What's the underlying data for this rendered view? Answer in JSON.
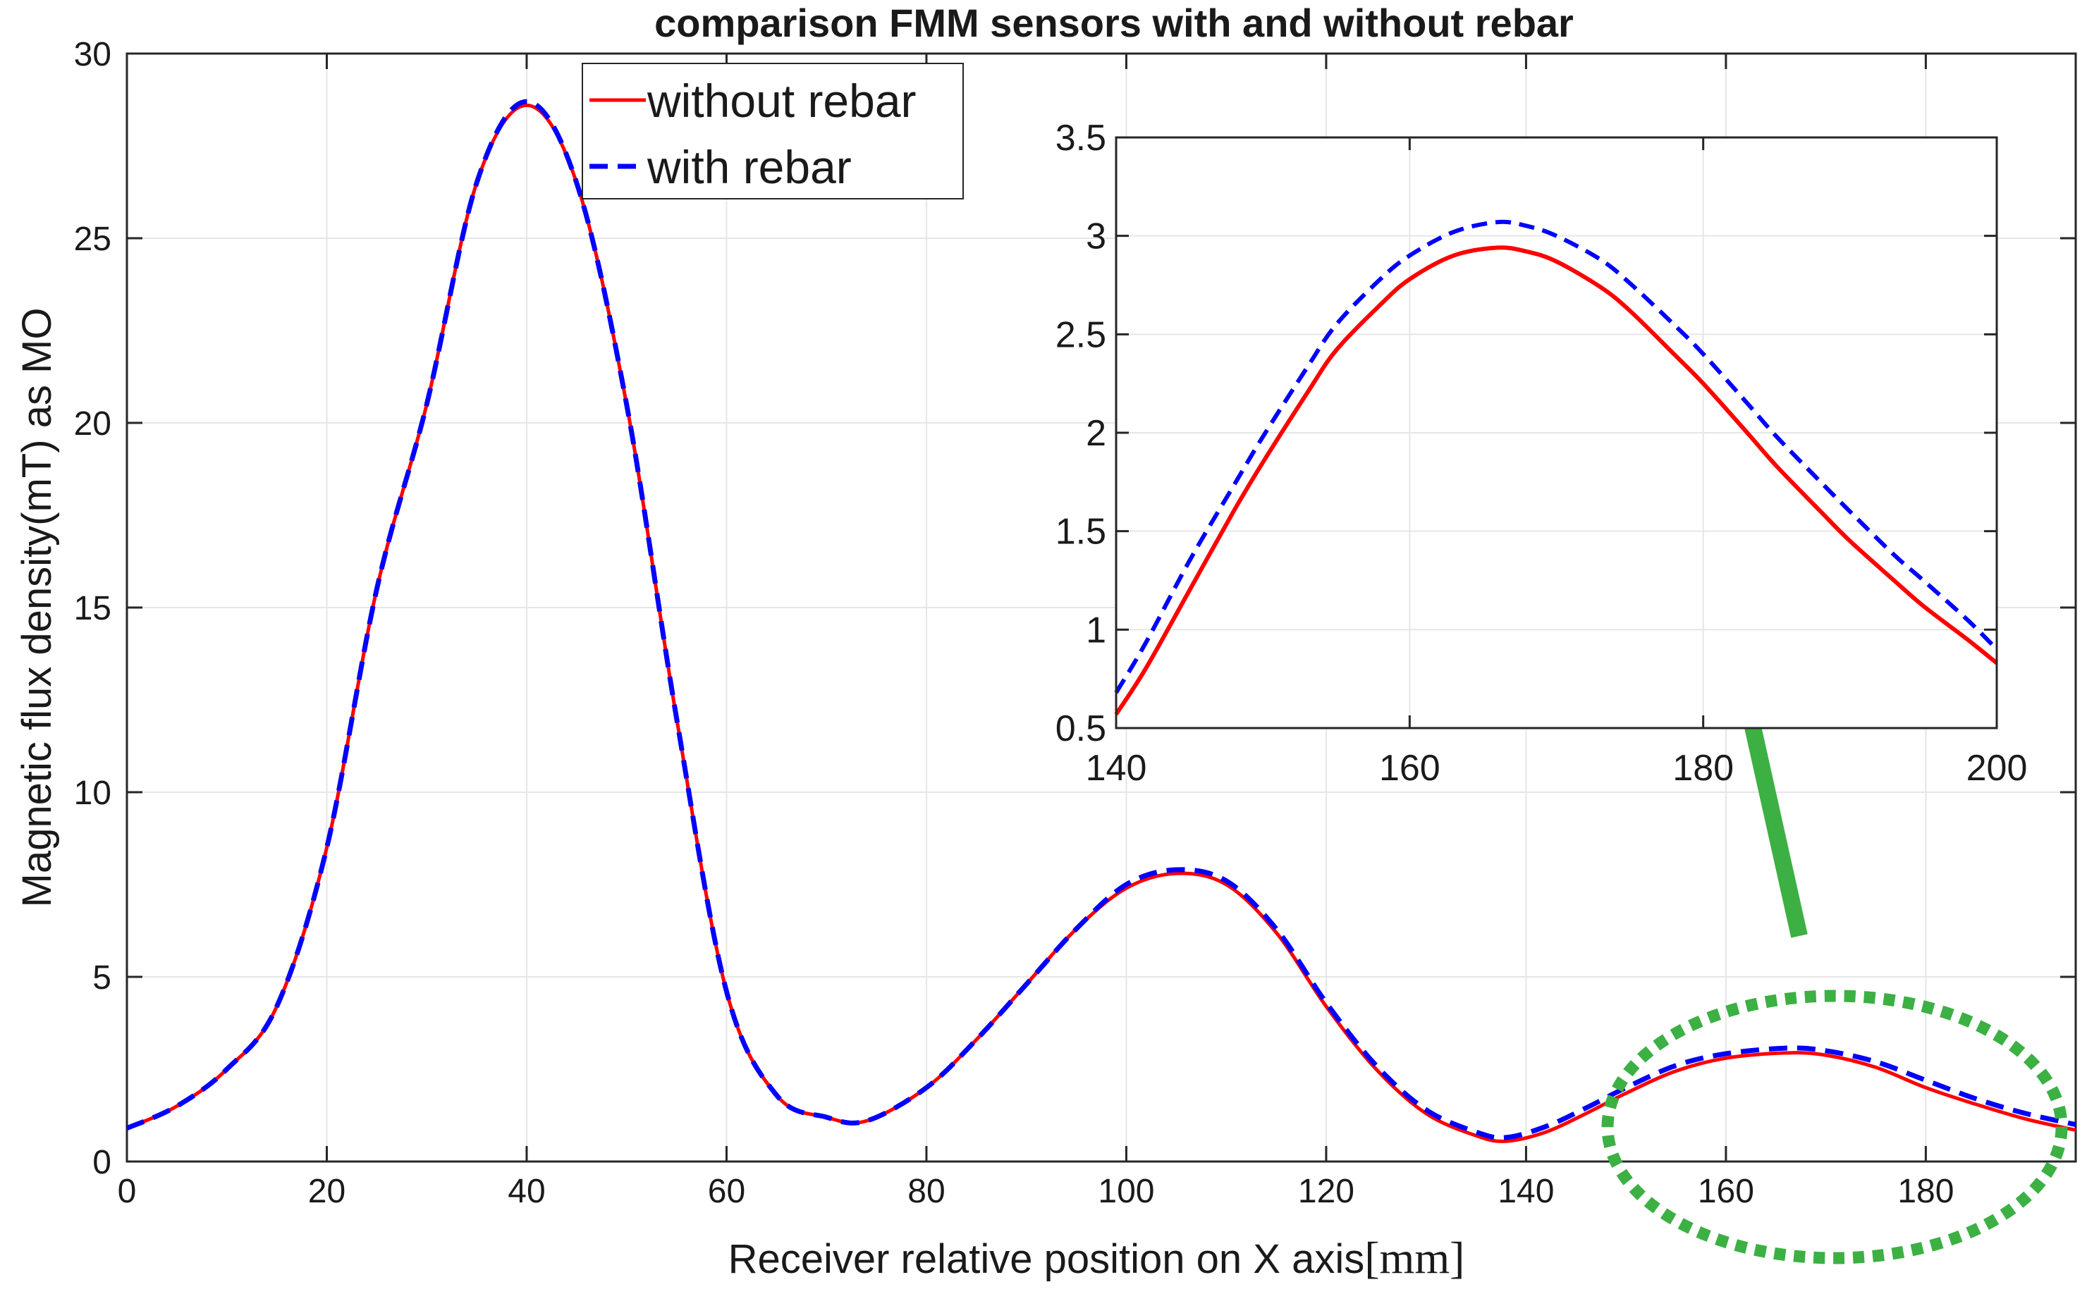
{
  "chart_data": [
    {
      "type": "line",
      "title": "comparison FMM sensors with and without rebar",
      "xlabel": "Receiver  relative position on X axis",
      "xlabel_unit": "[mm]",
      "ylabel": "Magnetic flux density(mT) as MO",
      "xlim": [
        0,
        195
      ],
      "ylim": [
        0,
        30
      ],
      "xticks": [
        0,
        20,
        40,
        60,
        80,
        100,
        120,
        140,
        160,
        180
      ],
      "xtick_labels": [
        "0",
        "20",
        "40",
        "60",
        "80",
        "100",
        "120",
        "140",
        "160",
        "180"
      ],
      "yticks": [
        0,
        5,
        10,
        15,
        20,
        25,
        30
      ],
      "ytick_labels": [
        "0",
        "5",
        "10",
        "15",
        "20",
        "25",
        "30"
      ],
      "grid": true,
      "legend": "top-center",
      "series": [
        {
          "name": "without rebar",
          "color": "#ff0000",
          "style": "solid",
          "x": [
            0,
            5,
            10,
            15,
            20,
            25,
            30,
            35,
            40,
            45,
            50,
            55,
            60,
            65,
            70,
            74,
            80,
            85,
            90,
            95,
            100,
            105,
            110,
            115,
            120,
            125,
            130,
            135,
            138,
            142,
            146,
            150,
            155,
            160,
            166,
            170,
            175,
            180,
            185,
            190,
            195
          ],
          "y": [
            0.9,
            1.5,
            2.5,
            4.2,
            8.5,
            15.5,
            20.5,
            26.5,
            28.6,
            26.5,
            20.5,
            12.0,
            4.6,
            1.8,
            1.2,
            1.1,
            2.0,
            3.3,
            4.8,
            6.3,
            7.4,
            7.8,
            7.5,
            6.2,
            4.2,
            2.5,
            1.3,
            0.7,
            0.55,
            0.8,
            1.3,
            1.85,
            2.45,
            2.8,
            2.94,
            2.88,
            2.55,
            2.0,
            1.55,
            1.15,
            0.85
          ]
        },
        {
          "name": "with rebar",
          "color": "#0000ff",
          "style": "dashed",
          "x": [
            0,
            5,
            10,
            15,
            20,
            25,
            30,
            35,
            40,
            45,
            50,
            55,
            60,
            65,
            70,
            74,
            80,
            85,
            90,
            95,
            100,
            105,
            110,
            115,
            120,
            125,
            130,
            135,
            138,
            142,
            146,
            150,
            155,
            160,
            166,
            170,
            175,
            180,
            185,
            190,
            195
          ],
          "y": [
            0.9,
            1.5,
            2.5,
            4.2,
            8.5,
            15.5,
            20.5,
            26.5,
            28.7,
            26.5,
            20.5,
            12.0,
            4.6,
            1.8,
            1.2,
            1.1,
            2.0,
            3.3,
            4.8,
            6.3,
            7.5,
            7.9,
            7.6,
            6.3,
            4.3,
            2.6,
            1.4,
            0.8,
            0.65,
            0.95,
            1.45,
            2.0,
            2.6,
            2.92,
            3.07,
            3.0,
            2.7,
            2.2,
            1.7,
            1.3,
            1.0
          ]
        }
      ]
    },
    {
      "type": "line",
      "title": "",
      "xlabel": "",
      "ylabel": "",
      "xlim": [
        140,
        200
      ],
      "ylim": [
        0.5,
        3.5
      ],
      "xticks": [
        140,
        160,
        180,
        200
      ],
      "xtick_labels": [
        "140",
        "160",
        "180",
        "200"
      ],
      "yticks": [
        0.5,
        1,
        1.5,
        2,
        2.5,
        3,
        3.5
      ],
      "ytick_labels": [
        "0.5",
        "1",
        "1.5",
        "2",
        "2.5",
        "3",
        "3.5"
      ],
      "grid": true,
      "series": [
        {
          "name": "without rebar",
          "color": "#ff0000",
          "style": "solid",
          "x": [
            140,
            142,
            145,
            148,
            150,
            153,
            155,
            158,
            160,
            163,
            166,
            168,
            170,
            173,
            175,
            178,
            180,
            183,
            185,
            188,
            190,
            193,
            195,
            198,
            200
          ],
          "y": [
            0.57,
            0.8,
            1.2,
            1.6,
            1.85,
            2.2,
            2.42,
            2.65,
            2.78,
            2.9,
            2.94,
            2.92,
            2.87,
            2.74,
            2.62,
            2.4,
            2.25,
            2.0,
            1.83,
            1.6,
            1.45,
            1.25,
            1.12,
            0.95,
            0.83
          ]
        },
        {
          "name": "with rebar",
          "color": "#0000ff",
          "style": "dashed",
          "x": [
            140,
            142,
            145,
            148,
            150,
            153,
            155,
            158,
            160,
            163,
            166,
            168,
            170,
            173,
            175,
            178,
            180,
            183,
            185,
            188,
            190,
            193,
            195,
            198,
            200
          ],
          "y": [
            0.68,
            0.93,
            1.35,
            1.73,
            1.98,
            2.33,
            2.55,
            2.78,
            2.9,
            3.02,
            3.07,
            3.05,
            3.0,
            2.88,
            2.76,
            2.55,
            2.4,
            2.15,
            1.98,
            1.75,
            1.6,
            1.38,
            1.25,
            1.05,
            0.9
          ]
        }
      ]
    }
  ],
  "annotations": {
    "highlight_color": "#3cb043"
  }
}
